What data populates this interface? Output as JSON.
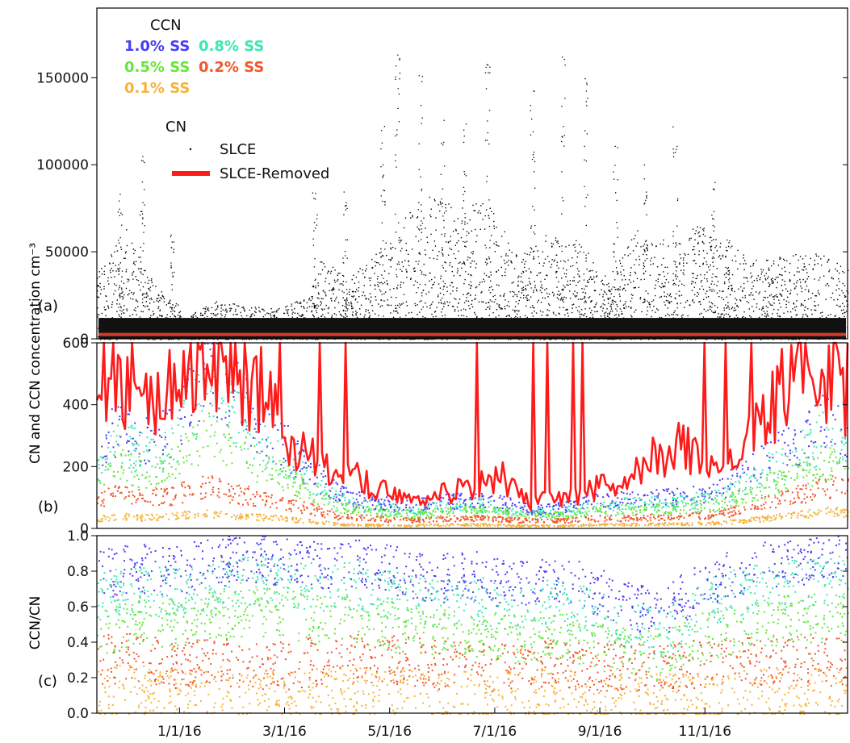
{
  "chart_data": [
    {
      "type": "scatter",
      "panel_label": "(a)",
      "ylabel": "",
      "ylim": [
        0,
        190000
      ],
      "yticks": [
        0,
        50000,
        100000,
        150000
      ],
      "ytick_labels": [
        "0",
        "50000",
        "100000",
        "150000"
      ],
      "legend": {
        "ccn_title": "CCN",
        "ccn_entries": [
          {
            "label": "1.0% SS",
            "color": "#4b3df5"
          },
          {
            "label": "0.8% SS",
            "color": "#3de6b3"
          },
          {
            "label": "0.5% SS",
            "color": "#66e63a"
          },
          {
            "label": "0.2% SS",
            "color": "#f0582a"
          },
          {
            "label": "0.1% SS",
            "color": "#f6b33c"
          }
        ],
        "cn_title": "CN",
        "cn_entries": [
          {
            "label": "SLCE",
            "color": "#000000",
            "style": "dot"
          },
          {
            "label": "SLCE-Removed",
            "color": "#ff1a1a",
            "style": "line"
          }
        ]
      },
      "series": [
        {
          "name": "SLCE",
          "color": "#000000",
          "x": [
            0.0,
            0.02,
            0.04,
            0.06,
            0.08,
            0.1,
            0.12,
            0.16,
            0.2,
            0.24,
            0.28,
            0.3,
            0.33,
            0.36,
            0.4,
            0.44,
            0.48,
            0.52,
            0.56,
            0.6,
            0.64,
            0.68,
            0.72,
            0.76,
            0.8,
            0.84,
            0.88,
            0.92,
            0.96,
            1.0
          ],
          "values": [
            25000,
            32000,
            40000,
            28000,
            18000,
            15000,
            8000,
            14000,
            12000,
            11000,
            15000,
            30000,
            22000,
            28000,
            42000,
            52000,
            48000,
            50000,
            30000,
            38000,
            36000,
            22000,
            40000,
            35000,
            42000,
            35000,
            28000,
            30000,
            32000,
            25000
          ],
          "peaks": [
            [
              0.06,
              110000
            ],
            [
              0.03,
              84000
            ],
            [
              0.1,
              60000
            ],
            [
              0.29,
              87000
            ],
            [
              0.33,
              85000
            ],
            [
              0.38,
              128000
            ],
            [
              0.4,
              165000
            ],
            [
              0.43,
              152000
            ],
            [
              0.46,
              128000
            ],
            [
              0.49,
              130000
            ],
            [
              0.52,
              165000
            ],
            [
              0.58,
              150000
            ],
            [
              0.62,
              175000
            ],
            [
              0.65,
              150000
            ],
            [
              0.69,
              113000
            ],
            [
              0.73,
              101000
            ],
            [
              0.77,
              130000
            ],
            [
              0.82,
              94000
            ],
            [
              0.84,
              60000
            ]
          ]
        }
      ]
    },
    {
      "type": "line",
      "panel_label": "(b)",
      "ylabel": "CN and CCN concentration cm⁻³",
      "ylim": [
        0,
        600
      ],
      "yticks": [
        0,
        200,
        400,
        600
      ],
      "ytick_labels": [
        "0",
        "200",
        "400",
        "600"
      ],
      "series": [
        {
          "name": "SLCE-Removed",
          "color": "#ff1a1a",
          "x": [
            0.0,
            0.03,
            0.06,
            0.1,
            0.12,
            0.15,
            0.18,
            0.22,
            0.25,
            0.28,
            0.32,
            0.35,
            0.38,
            0.42,
            0.46,
            0.5,
            0.54,
            0.58,
            0.62,
            0.66,
            0.7,
            0.74,
            0.78,
            0.82,
            0.86,
            0.9,
            0.94,
            0.97,
            1.0
          ],
          "values": [
            500,
            420,
            380,
            450,
            520,
            560,
            480,
            420,
            300,
            220,
            160,
            150,
            120,
            100,
            110,
            120,
            160,
            80,
            90,
            120,
            150,
            220,
            250,
            200,
            240,
            380,
            520,
            480,
            420
          ]
        },
        {
          "name": "1.0% SS",
          "color": "#4b3df5",
          "x": [
            0.0,
            0.03,
            0.06,
            0.1,
            0.12,
            0.15,
            0.18,
            0.22,
            0.25,
            0.28,
            0.32,
            0.35,
            0.38,
            0.42,
            0.46,
            0.5,
            0.54,
            0.58,
            0.62,
            0.66,
            0.7,
            0.74,
            0.78,
            0.82,
            0.86,
            0.9,
            0.94,
            0.97,
            1.0
          ],
          "values": [
            250,
            320,
            280,
            300,
            380,
            480,
            420,
            310,
            260,
            180,
            110,
            90,
            80,
            70,
            85,
            90,
            80,
            60,
            65,
            85,
            90,
            95,
            100,
            110,
            170,
            230,
            280,
            340,
            300
          ]
        },
        {
          "name": "0.8% SS",
          "color": "#3de6b3",
          "x": [
            0.0,
            0.03,
            0.06,
            0.1,
            0.12,
            0.15,
            0.18,
            0.22,
            0.25,
            0.28,
            0.32,
            0.35,
            0.38,
            0.42,
            0.46,
            0.5,
            0.54,
            0.58,
            0.62,
            0.66,
            0.7,
            0.74,
            0.78,
            0.82,
            0.86,
            0.9,
            0.94,
            0.97,
            1.0
          ],
          "values": [
            200,
            270,
            230,
            250,
            330,
            420,
            360,
            260,
            210,
            150,
            90,
            75,
            65,
            58,
            70,
            75,
            65,
            50,
            54,
            70,
            75,
            80,
            85,
            95,
            140,
            190,
            240,
            290,
            250
          ]
        },
        {
          "name": "0.5% SS",
          "color": "#66e63a",
          "x": [
            0.0,
            0.03,
            0.06,
            0.1,
            0.12,
            0.15,
            0.18,
            0.22,
            0.25,
            0.28,
            0.32,
            0.35,
            0.38,
            0.42,
            0.46,
            0.5,
            0.54,
            0.58,
            0.62,
            0.66,
            0.7,
            0.74,
            0.78,
            0.82,
            0.86,
            0.9,
            0.94,
            0.97,
            1.0
          ],
          "values": [
            150,
            200,
            170,
            190,
            240,
            290,
            250,
            190,
            160,
            120,
            70,
            60,
            50,
            45,
            55,
            58,
            50,
            40,
            42,
            55,
            58,
            60,
            65,
            72,
            100,
            140,
            170,
            200,
            180
          ]
        },
        {
          "name": "0.2% SS",
          "color": "#f0582a",
          "x": [
            0.0,
            0.03,
            0.06,
            0.1,
            0.12,
            0.15,
            0.18,
            0.22,
            0.25,
            0.28,
            0.32,
            0.35,
            0.38,
            0.42,
            0.46,
            0.5,
            0.54,
            0.58,
            0.62,
            0.66,
            0.7,
            0.74,
            0.78,
            0.82,
            0.86,
            0.9,
            0.94,
            0.97,
            1.0
          ],
          "values": [
            90,
            110,
            95,
            100,
            120,
            130,
            110,
            95,
            80,
            65,
            40,
            35,
            30,
            28,
            32,
            34,
            30,
            25,
            26,
            32,
            34,
            35,
            38,
            42,
            60,
            85,
            110,
            130,
            120
          ]
        },
        {
          "name": "0.1% SS",
          "color": "#f6b33c",
          "x": [
            0.0,
            0.03,
            0.06,
            0.1,
            0.12,
            0.15,
            0.18,
            0.22,
            0.25,
            0.28,
            0.32,
            0.35,
            0.38,
            0.42,
            0.46,
            0.5,
            0.54,
            0.58,
            0.62,
            0.66,
            0.7,
            0.74,
            0.78,
            0.82,
            0.86,
            0.9,
            0.94,
            0.97,
            1.0
          ],
          "values": [
            30,
            40,
            35,
            38,
            45,
            50,
            42,
            36,
            30,
            25,
            15,
            13,
            12,
            11,
            13,
            14,
            12,
            10,
            11,
            13,
            14,
            15,
            16,
            18,
            25,
            35,
            45,
            55,
            50
          ]
        }
      ]
    },
    {
      "type": "scatter",
      "panel_label": "(c)",
      "ylabel": "CCN/CN",
      "ylim": [
        0,
        1.0
      ],
      "yticks": [
        0.0,
        0.2,
        0.4,
        0.6,
        0.8,
        1.0
      ],
      "ytick_labels": [
        "0.0",
        "0.2",
        "0.4",
        "0.6",
        "0.8",
        "1.0"
      ],
      "xtick_labels": [
        "1/1/16",
        "3/1/16",
        "5/1/16",
        "7/1/16",
        "9/1/16",
        "11/1/16"
      ],
      "xtick_positions": [
        0.11,
        0.25,
        0.39,
        0.53,
        0.67,
        0.81
      ],
      "series": [
        {
          "name": "1.0% SS",
          "color": "#4b3df5",
          "x": [
            0.0,
            0.05,
            0.1,
            0.15,
            0.2,
            0.25,
            0.3,
            0.35,
            0.4,
            0.45,
            0.5,
            0.55,
            0.6,
            0.65,
            0.7,
            0.75,
            0.8,
            0.85,
            0.9,
            0.95,
            1.0
          ],
          "values": [
            0.78,
            0.82,
            0.8,
            0.85,
            0.88,
            0.86,
            0.84,
            0.85,
            0.8,
            0.76,
            0.78,
            0.72,
            0.74,
            0.72,
            0.62,
            0.55,
            0.72,
            0.8,
            0.84,
            0.86,
            0.88
          ]
        },
        {
          "name": "0.8% SS",
          "color": "#3de6b3",
          "x": [
            0.0,
            0.05,
            0.1,
            0.15,
            0.2,
            0.25,
            0.3,
            0.35,
            0.4,
            0.45,
            0.5,
            0.55,
            0.6,
            0.65,
            0.7,
            0.75,
            0.8,
            0.85,
            0.9,
            0.95,
            1.0
          ],
          "values": [
            0.65,
            0.7,
            0.68,
            0.72,
            0.75,
            0.74,
            0.7,
            0.72,
            0.66,
            0.62,
            0.64,
            0.6,
            0.62,
            0.58,
            0.5,
            0.45,
            0.6,
            0.68,
            0.72,
            0.74,
            0.76
          ]
        },
        {
          "name": "0.5% SS",
          "color": "#66e63a",
          "x": [
            0.0,
            0.05,
            0.1,
            0.15,
            0.2,
            0.25,
            0.3,
            0.35,
            0.4,
            0.45,
            0.5,
            0.55,
            0.6,
            0.65,
            0.7,
            0.75,
            0.8,
            0.85,
            0.9,
            0.95,
            1.0
          ],
          "values": [
            0.45,
            0.52,
            0.5,
            0.55,
            0.58,
            0.56,
            0.52,
            0.54,
            0.48,
            0.44,
            0.46,
            0.42,
            0.44,
            0.4,
            0.36,
            0.32,
            0.42,
            0.48,
            0.52,
            0.54,
            0.55
          ]
        },
        {
          "name": "0.2% SS",
          "color": "#f0582a",
          "x": [
            0.0,
            0.05,
            0.1,
            0.15,
            0.2,
            0.25,
            0.3,
            0.35,
            0.4,
            0.45,
            0.5,
            0.55,
            0.6,
            0.65,
            0.7,
            0.75,
            0.8,
            0.85,
            0.9,
            0.95,
            1.0
          ],
          "values": [
            0.3,
            0.32,
            0.28,
            0.3,
            0.28,
            0.27,
            0.3,
            0.32,
            0.3,
            0.28,
            0.27,
            0.26,
            0.28,
            0.27,
            0.26,
            0.25,
            0.28,
            0.3,
            0.3,
            0.29,
            0.3
          ]
        },
        {
          "name": "0.1% SS",
          "color": "#f6b33c",
          "x": [
            0.0,
            0.05,
            0.1,
            0.15,
            0.2,
            0.25,
            0.3,
            0.35,
            0.4,
            0.45,
            0.5,
            0.55,
            0.6,
            0.65,
            0.7,
            0.75,
            0.8,
            0.85,
            0.9,
            0.95,
            1.0
          ],
          "values": [
            0.12,
            0.14,
            0.12,
            0.13,
            0.12,
            0.11,
            0.12,
            0.13,
            0.12,
            0.1,
            0.1,
            0.1,
            0.11,
            0.1,
            0.09,
            0.09,
            0.1,
            0.11,
            0.12,
            0.12,
            0.12
          ]
        }
      ]
    }
  ]
}
